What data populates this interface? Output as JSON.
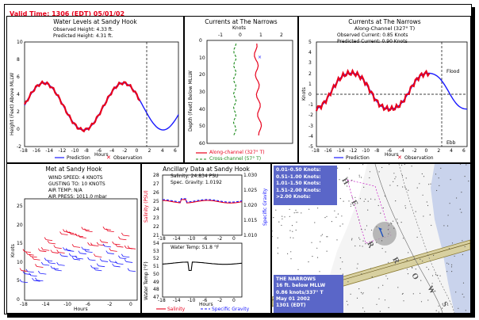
{
  "valid_time": "Valid Time: 1306 (EDT) 05/01/02",
  "colors": {
    "prediction": "#1a1aff",
    "observation": "#e8001c",
    "along": "#e8001c",
    "cross": "#1a8a1a",
    "map_box": "#5a66c8"
  },
  "panel1": {
    "title": "Water Levels at Sandy Hook",
    "observed": "Observed Height:  4.33 ft.",
    "predicted": "Predicted Height:  4.31 ft.",
    "ylabel": "Height (Feet) Above MLLW",
    "xlabel": "Hours",
    "yticks": [
      "10",
      "8",
      "6",
      "4",
      "2",
      "0",
      "-2"
    ],
    "xticks": [
      "-18",
      "-16",
      "-14",
      "-12",
      "-10",
      "-8",
      "-6",
      "-4",
      "-2",
      "0",
      "2",
      "4",
      "6"
    ],
    "legend_pred": "Prediction",
    "legend_obs": "Observation"
  },
  "panel2": {
    "title": "Currents at The Narrows",
    "xlabel_top": "Knots",
    "xticks": [
      "-1",
      "0",
      "1",
      "2"
    ],
    "yticks": [
      "0",
      "10",
      "20",
      "30",
      "40",
      "50",
      "60"
    ],
    "ylabel": "Depth (Feet) Below MLLW",
    "legend_along": "Along-channel (327° T)",
    "legend_cross": "Cross-channel (57° T)"
  },
  "panel3": {
    "title": "Currents at The Narrows",
    "subtitle": "Along-Channel (327° T)",
    "observed": "Observed Current:  0.85 Knots",
    "predicted": "Predicted Current:  0.90 Knots",
    "ylabel": "Knots",
    "flood": "Flood",
    "ebb": "Ebb",
    "yticks": [
      "5",
      "4",
      "3",
      "2",
      "1",
      "0",
      "-1",
      "-2",
      "-3",
      "-4",
      "-5"
    ],
    "xticks": [
      "-18",
      "-16",
      "-14",
      "-12",
      "-10",
      "-8",
      "-6",
      "-4",
      "-2",
      "0",
      "2",
      "4",
      "6"
    ],
    "xlabel": "Hours",
    "legend_pred": "Prediction",
    "legend_obs": "Observation"
  },
  "panel4": {
    "title": "Met at Sandy Hook",
    "wind_speed": "WIND SPEED:    4 KNOTS",
    "gusting": "GUSTING TO:   10 KNOTS",
    "air_temp": "AIR TEMP:       N/A",
    "air_press": "AIR PRESS: 1011.0 mbar",
    "ylabel": "Knots",
    "yticks": [
      "25",
      "20",
      "15",
      "10",
      "5",
      "0"
    ],
    "xticks": [
      "-18",
      "-14",
      "-10",
      "-6",
      "-2",
      "0"
    ],
    "xlabel": "Hours"
  },
  "panel5": {
    "title": "Ancillary Data at Sandy Hook",
    "salinity": "Salinity:    24.834 PSU",
    "gravity": "Spec. Gravity:  1.0192",
    "water_temp": "Water Temp:   51.8 °F",
    "ylabel_sal": "Salinity (PSU)",
    "ylabel_grav": "Specific Gravity",
    "ylabel_temp": "Water Temp (°F)",
    "sal_ticks": [
      "28",
      "27",
      "26",
      "25",
      "24",
      "23",
      "22",
      "21"
    ],
    "grav_ticks": [
      "1.030",
      "1.025",
      "1.020",
      "1.015",
      "1.010"
    ],
    "temp_ticks": [
      "54",
      "53",
      "52",
      "51",
      "50",
      "49",
      "48",
      "47"
    ],
    "xticks": [
      "-18",
      "-14",
      "-10",
      "-6",
      "-2",
      "0"
    ],
    "xlabel": "Hours",
    "legend_sal": "Salinity",
    "legend_grav": "Specific Gravity"
  },
  "panel6": {
    "legend": [
      {
        "label": "0.01–0.50 Knots:",
        "color": "#000000"
      },
      {
        "label": "0.51–1.00 Knots:",
        "color": "#1a8a1a"
      },
      {
        "label": "1.01–1.50 Knots:",
        "color": "#0050c8"
      },
      {
        "label": "1.51–2.00 Knots:",
        "color": "#a020a0"
      },
      {
        "label": ">2.00 Knots:",
        "color": "#e8001c"
      }
    ],
    "info_lines": [
      "THE NARROWS",
      "16 ft. below MLLW",
      "0.86 knots/337° T",
      "May 01 2002",
      "1301 (EDT)"
    ],
    "map_letters": [
      "H",
      "E",
      "R",
      "R",
      "O",
      "W",
      "S"
    ]
  }
}
